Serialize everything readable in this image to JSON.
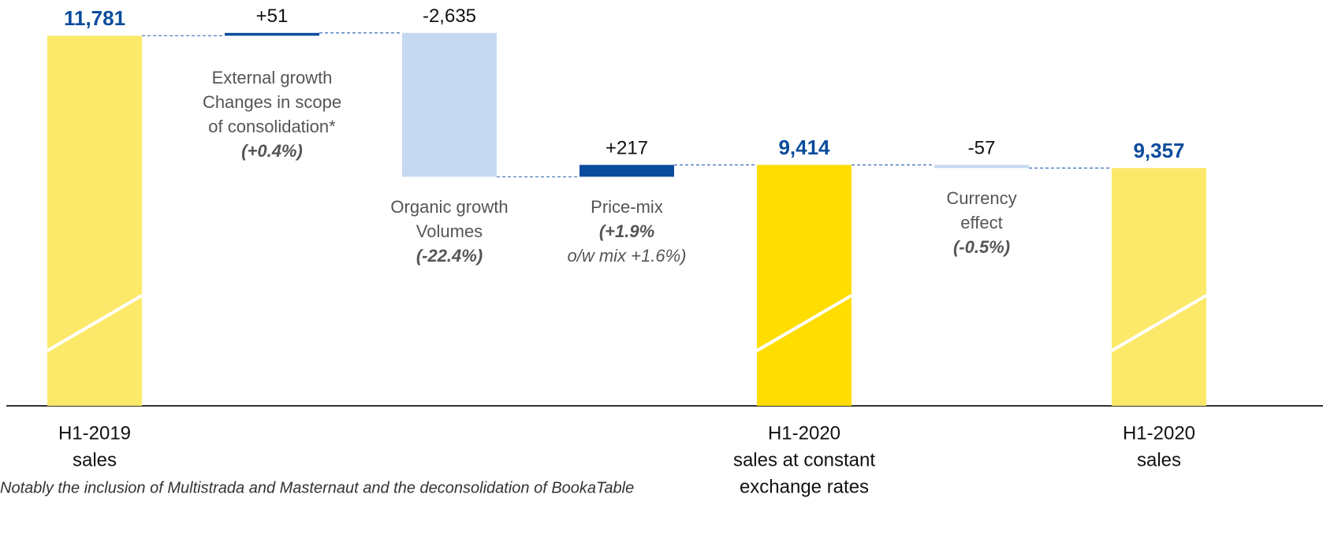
{
  "chart_data": {
    "type": "waterfall",
    "categories": [
      [
        "H1-2019",
        "sales"
      ],
      null,
      null,
      null,
      [
        "H1-2020",
        "sales at constant",
        "exchange rates"
      ],
      null,
      [
        "H1-2020",
        "sales"
      ]
    ],
    "values": [
      11781,
      51,
      -2635,
      217,
      9414,
      -57,
      9357
    ],
    "value_labels": [
      "11,781",
      "+51",
      "-2,635",
      "+217",
      "9,414",
      "-57",
      "9,357"
    ],
    "totals": [
      true,
      false,
      false,
      false,
      true,
      false,
      true
    ],
    "colors": [
      "#fce96a",
      "#0a4c9c",
      "#c5d9f1",
      "#0a4c9c",
      "#ffdd00",
      "#c5d9f1",
      "#fce96a"
    ],
    "descriptions": [
      null,
      {
        "lines": [
          "External growth",
          "Changes in scope",
          "of consolidation*"
        ],
        "notes": [
          "(+0.4%)"
        ]
      },
      {
        "lines": [
          "Organic growth",
          "Volumes"
        ],
        "notes": [
          "(-22.4%)"
        ]
      },
      {
        "lines": [
          "Price-mix"
        ],
        "notes": [
          "(+1.9%",
          "o/w mix +1.6%)"
        ]
      },
      null,
      {
        "lines": [
          "Currency",
          "effect"
        ],
        "notes": [
          "(-0.5%)"
        ]
      },
      null
    ],
    "ylim": [
      5000,
      11800
    ],
    "footnote": "Notably the inclusion of Multistrada and Masternaut and the deconsolidation of BookaTable"
  }
}
